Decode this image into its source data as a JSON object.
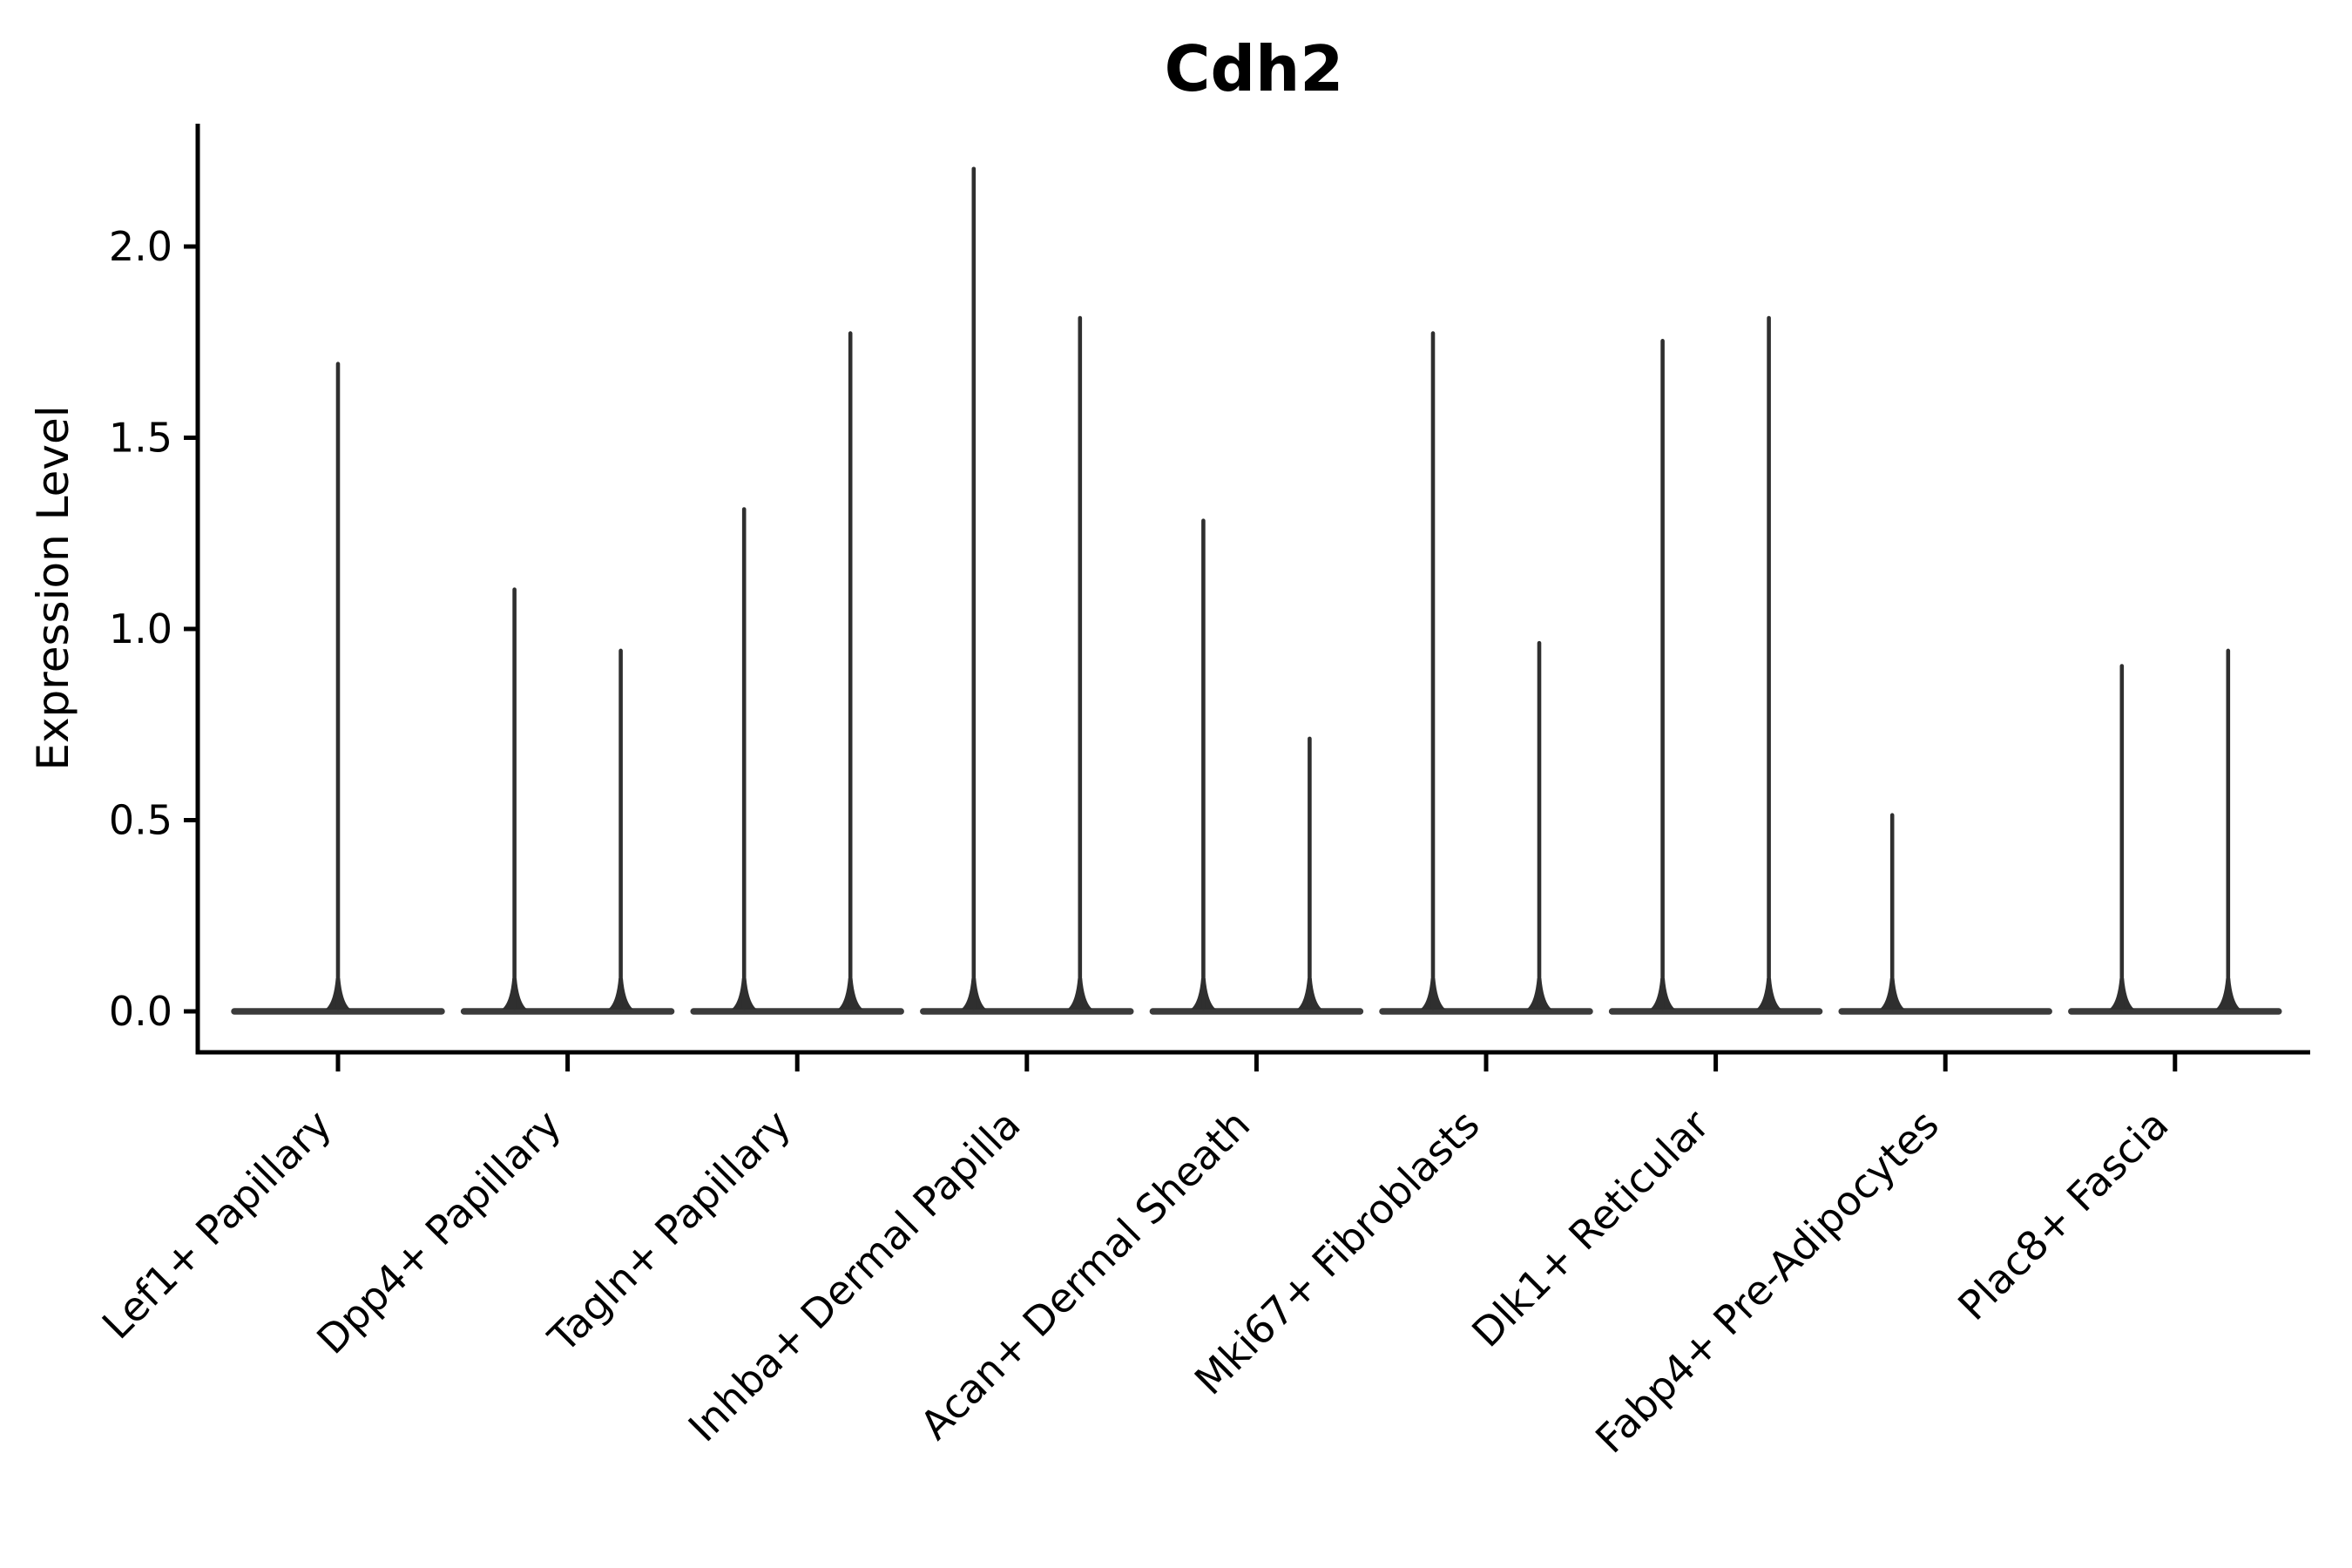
{
  "figure": {
    "background": "#ffffff"
  },
  "chart_data": {
    "type": "violin",
    "title": "Cdh2",
    "ylabel": "Expression Level",
    "xlabel": "",
    "yticks": [
      0.0,
      0.5,
      1.0,
      1.5,
      2.0
    ],
    "ylim": [
      -0.12,
      2.32
    ],
    "grid": false,
    "legend": "none",
    "categories": [
      "Lef1+ Papillary",
      "Dpp4+ Papillary",
      "Tagln+ Papillary",
      "Inhba+ Dermal Papilla",
      "Acan+ Dermal Sheath",
      "Mki67+ Fibroblasts",
      "Dlk1+ Reticular",
      "Fabp4+ Pre-Adipocytes",
      "Plac8+ Fascia"
    ],
    "violins": [
      {
        "category": "Lef1+ Papillary",
        "groups": [
          {
            "slot": "center",
            "max": 1.7
          }
        ]
      },
      {
        "category": "Dpp4+ Papillary",
        "groups": [
          {
            "slot": "left",
            "max": 1.11
          },
          {
            "slot": "right",
            "max": 0.95
          }
        ]
      },
      {
        "category": "Tagln+ Papillary",
        "groups": [
          {
            "slot": "left",
            "max": 1.32
          },
          {
            "slot": "right",
            "max": 1.78
          }
        ]
      },
      {
        "category": "Inhba+ Dermal Papilla",
        "groups": [
          {
            "slot": "left",
            "max": 2.21
          },
          {
            "slot": "right",
            "max": 1.82
          }
        ]
      },
      {
        "category": "Acan+ Dermal Sheath",
        "groups": [
          {
            "slot": "left",
            "max": 1.29
          },
          {
            "slot": "right",
            "max": 0.72
          }
        ]
      },
      {
        "category": "Mki67+ Fibroblasts",
        "groups": [
          {
            "slot": "left",
            "max": 1.78
          },
          {
            "slot": "right",
            "max": 0.97
          }
        ]
      },
      {
        "category": "Dlk1+ Reticular",
        "groups": [
          {
            "slot": "left",
            "max": 1.76
          },
          {
            "slot": "right",
            "max": 1.82
          }
        ]
      },
      {
        "category": "Fabp4+ Pre-Adipocytes",
        "groups": [
          {
            "slot": "left",
            "max": 0.52
          },
          {
            "slot": "right",
            "max": 0.0
          }
        ]
      },
      {
        "category": "Plac8+ Fascia",
        "groups": [
          {
            "slot": "left",
            "max": 0.91
          },
          {
            "slot": "right",
            "max": 0.95
          }
        ]
      }
    ],
    "colors": {
      "spike": "#2f2f2f",
      "base": "#3b3b3b",
      "axis": "#000000",
      "text": "#000000",
      "background": "#ffffff"
    }
  }
}
